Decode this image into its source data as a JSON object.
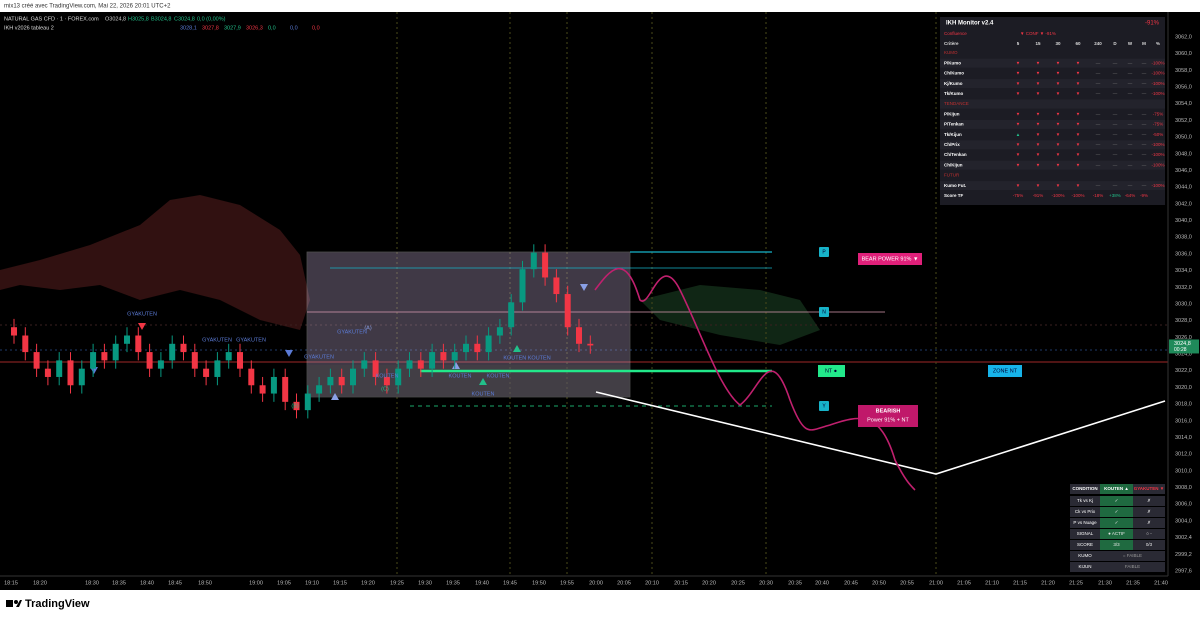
{
  "header": {
    "credit": "mix13 créé avec TradingView.com, Mai 22, 2026 20:01 UTC+2",
    "symbol_line": "NATURAL GAS CFD · 1 · FOREX.com",
    "ohlc": [
      "O3024,8",
      "H3025,8",
      "B3024,8",
      "C3024,8",
      "0,0 (0,00%)"
    ],
    "indicator_line": "IKH v2026 tableau 2",
    "indicator_values": [
      "3028,1",
      "3027,8",
      "3027,9",
      "3026,3",
      "0,0",
      "0,0",
      "0,0"
    ]
  },
  "price_axis": {
    "labels": [
      "3062,0",
      "3060,0",
      "3058,0",
      "3056,0",
      "3054,0",
      "3052,0",
      "3050,0",
      "3048,0",
      "3046,0",
      "3044,0",
      "3042,0",
      "3040,0",
      "3038,0",
      "3036,0",
      "3034,0",
      "3032,0",
      "3030,0",
      "3028,0",
      "3026,0",
      "3024,0",
      "3022,0",
      "3020,0",
      "3018,0",
      "3016,0",
      "3014,0",
      "3012,0",
      "3010,0",
      "3008,0",
      "3006,0",
      "3004,0",
      "3002,4",
      "2999,2",
      "2997,6"
    ],
    "last_price": "3024,8",
    "countdown": "00:28"
  },
  "time_axis": {
    "labels": [
      "18:15",
      "18:20",
      "18:30",
      "18:35",
      "18:40",
      "18:45",
      "18:50",
      "19:00",
      "19:05",
      "19:10",
      "19:15",
      "19:20",
      "19:25",
      "19:30",
      "19:35",
      "19:40",
      "19:45",
      "19:50",
      "19:55",
      "20:00",
      "20:05",
      "20:10",
      "20:15",
      "20:20",
      "20:25",
      "20:30",
      "20:35",
      "20:40",
      "20:45",
      "20:50",
      "20:55",
      "21:00",
      "21:05",
      "21:10",
      "21:15",
      "21:20",
      "21:25",
      "21:30",
      "21:35",
      "21:40"
    ]
  },
  "candles": {
    "ylim": [
      2997.6,
      3062
    ],
    "open": [
      3027,
      3026,
      3024,
      3022,
      3021,
      3023,
      3020,
      3022,
      3024,
      3023,
      3025,
      3026,
      3024,
      3022,
      3023,
      3025,
      3024,
      3022,
      3021,
      3023,
      3024,
      3022,
      3020,
      3019,
      3021,
      3018,
      3017,
      3019,
      3020,
      3021,
      3020,
      3022,
      3023,
      3021,
      3020,
      3022,
      3023,
      3022,
      3024,
      3023,
      3024,
      3025,
      3024,
      3026,
      3027,
      3030,
      3034,
      3036,
      3033,
      3031,
      3027,
      3025
    ],
    "high": [
      3028,
      3027,
      3025,
      3023,
      3024,
      3024,
      3023,
      3025,
      3025,
      3026,
      3027,
      3027,
      3025,
      3024,
      3026,
      3026,
      3025,
      3023,
      3024,
      3025,
      3025,
      3023,
      3021,
      3022,
      3022,
      3019,
      3020,
      3021,
      3022,
      3022,
      3023,
      3024,
      3024,
      3022,
      3023,
      3024,
      3024,
      3025,
      3025,
      3025,
      3026,
      3026,
      3027,
      3028,
      3031,
      3035,
      3037,
      3037,
      3034,
      3032,
      3028,
      3026
    ],
    "low": [
      3025,
      3023,
      3021,
      3020,
      3020,
      3019,
      3019,
      3021,
      3022,
      3022,
      3024,
      3023,
      3021,
      3021,
      3022,
      3023,
      3021,
      3020,
      3020,
      3022,
      3021,
      3019,
      3018,
      3018,
      3017,
      3016,
      3016,
      3018,
      3019,
      3019,
      3019,
      3021,
      3020,
      3019,
      3019,
      3021,
      3021,
      3021,
      3022,
      3022,
      3023,
      3023,
      3023,
      3025,
      3026,
      3029,
      3033,
      3032,
      3030,
      3026,
      3024,
      3023.8
    ],
    "close": [
      3026,
      3024,
      3022,
      3021,
      3023,
      3020,
      3022,
      3024,
      3023,
      3025,
      3026,
      3024,
      3022,
      3023,
      3025,
      3024,
      3022,
      3021,
      3023,
      3024,
      3022,
      3020,
      3019,
      3021,
      3018,
      3017,
      3019,
      3020,
      3021,
      3020,
      3022,
      3023,
      3021,
      3020,
      3022,
      3023,
      3022,
      3024,
      3023,
      3024,
      3025,
      3024,
      3026,
      3027,
      3030,
      3034,
      3036,
      3033,
      3031,
      3027,
      3025,
      3024.8
    ]
  },
  "annotations": {
    "signals": [
      "GYAKUTEN",
      "GYAKUTEN",
      "GYAKUTEN",
      "GYAKUTEN",
      "GYAKUTEN",
      "KOUTEN",
      "KOUTEN",
      "KOUTEN",
      "KOUTEN KOUTEN",
      "KOUTEN",
      "(A)",
      "(B)",
      "(C)"
    ],
    "bear_power": "BEAR POWER 91% ▼",
    "nt": "NT ●",
    "zone_nt": "ZONE NT",
    "bearish_title": "BEARISH",
    "bearish_sub": "Power 91% + NT",
    "levels": [
      "P",
      "N",
      "Y"
    ]
  },
  "monitor": {
    "title": "IKH Monitor v2.4",
    "total": "-91%",
    "confluence_label": "Confluence",
    "confluence_value": "▼ CONF ▼ -91%",
    "columns": [
      "Critère",
      "5",
      "15",
      "30",
      "60",
      "240",
      "D",
      "W",
      "M",
      "%"
    ],
    "rows": [
      {
        "section": "KUMO"
      },
      {
        "label": "P/Kumo",
        "cells": [
          "▼",
          "▼",
          "▼",
          "▼",
          "—",
          "—",
          "—",
          "—",
          "-100%"
        ]
      },
      {
        "label": "Ch/Kumo",
        "cells": [
          "▼",
          "▼",
          "▼",
          "▼",
          "—",
          "—",
          "—",
          "—",
          "-100%"
        ]
      },
      {
        "label": "Kj/Kumo",
        "cells": [
          "▼",
          "▼",
          "▼",
          "▼",
          "—",
          "—",
          "—",
          "—",
          "-100%"
        ]
      },
      {
        "label": "Tk/Kumo",
        "cells": [
          "▼",
          "▼",
          "▼",
          "▼",
          "—",
          "—",
          "—",
          "—",
          "-100%"
        ]
      },
      {
        "section": "TENDANCE"
      },
      {
        "label": "P/Kijun",
        "cells": [
          "▼",
          "▼",
          "▼",
          "▼",
          "—",
          "—",
          "—",
          "—",
          "-75%"
        ]
      },
      {
        "label": "P/Tenkan",
        "cells": [
          "▼",
          "▼",
          "▼",
          "▼",
          "—",
          "—",
          "—",
          "—",
          "-75%"
        ]
      },
      {
        "label": "Tk/Kijun",
        "cells": [
          "▲",
          "▼",
          "▼",
          "▼",
          "—",
          "—",
          "—",
          "—",
          "-50%"
        ]
      },
      {
        "label": "Ch/Prix",
        "cells": [
          "▼",
          "▼",
          "▼",
          "▼",
          "—",
          "—",
          "—",
          "—",
          "-100%"
        ]
      },
      {
        "label": "Ch/Tenkan",
        "cells": [
          "▼",
          "▼",
          "▼",
          "▼",
          "—",
          "—",
          "—",
          "—",
          "-100%"
        ]
      },
      {
        "label": "Ch/Kijun",
        "cells": [
          "▼",
          "▼",
          "▼",
          "▼",
          "—",
          "—",
          "—",
          "—",
          "-100%"
        ]
      },
      {
        "section": "FUTUR"
      },
      {
        "label": "Kumo Fut.",
        "cells": [
          "▼",
          "▼",
          "▼",
          "▼",
          "—",
          "—",
          "—",
          "—",
          "-100%"
        ]
      },
      {
        "label": "Score TF",
        "cells": [
          "-75%",
          "-91%",
          "-100%",
          "-100%",
          "-18%",
          "+38%",
          "-64%",
          "-9%"
        ]
      }
    ]
  },
  "conditions": {
    "columns": [
      "CONDITION",
      "KOUTEN ▲",
      "GYAKUTEN ▼"
    ],
    "rows": [
      [
        "Tk vs Kj",
        "✓",
        "✗"
      ],
      [
        "Ck vs Prix",
        "✓",
        "✗"
      ],
      [
        "P vs Nuage",
        "✓",
        "✗"
      ],
      [
        "SIGNAL",
        "● ACTIF",
        "○ -"
      ],
      [
        "SCORE",
        "3/3",
        "0/3"
      ],
      [
        "KUMO",
        "= FAIBLE"
      ],
      [
        "KIJUN",
        "FAIBLE"
      ]
    ]
  },
  "footer": {
    "brand": "TradingView"
  }
}
